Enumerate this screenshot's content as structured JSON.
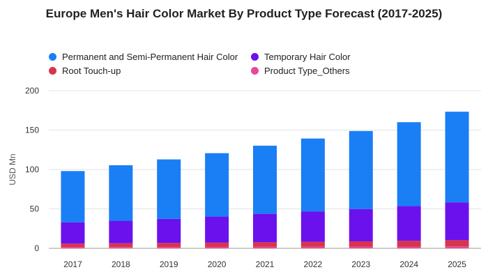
{
  "chart_data": {
    "type": "bar",
    "stacked": true,
    "title": "Europe Men's Hair Color Market By Product Type Forecast (2017-2025)",
    "xlabel": "",
    "ylabel": "USD Mn",
    "ylim": [
      0,
      200
    ],
    "yticks": [
      0,
      50,
      100,
      150,
      200
    ],
    "grid": true,
    "legend_position": "top",
    "categories": [
      "2017",
      "2018",
      "2019",
      "2020",
      "2021",
      "2022",
      "2023",
      "2024",
      "2025"
    ],
    "series": [
      {
        "name": "Product Type_Others",
        "color": "#e8489a",
        "values": [
          1.5,
          1.6,
          1.7,
          1.8,
          1.9,
          2.0,
          2.1,
          2.2,
          2.4
        ]
      },
      {
        "name": "Root Touch-up",
        "color": "#d8344a",
        "values": [
          4.5,
          4.8,
          5.1,
          5.4,
          5.8,
          6.3,
          6.7,
          7.3,
          7.9
        ]
      },
      {
        "name": "Temporary Hair Color",
        "color": "#6a11ee",
        "values": [
          27,
          28.5,
          30.5,
          33,
          36,
          38.5,
          41,
          44,
          48
        ]
      },
      {
        "name": "Permanent and Semi-Permanent Hair Color",
        "color": "#1a7ef5",
        "values": [
          65,
          70.5,
          75.5,
          80.5,
          86.5,
          92.5,
          99,
          106.5,
          115
        ]
      }
    ]
  }
}
